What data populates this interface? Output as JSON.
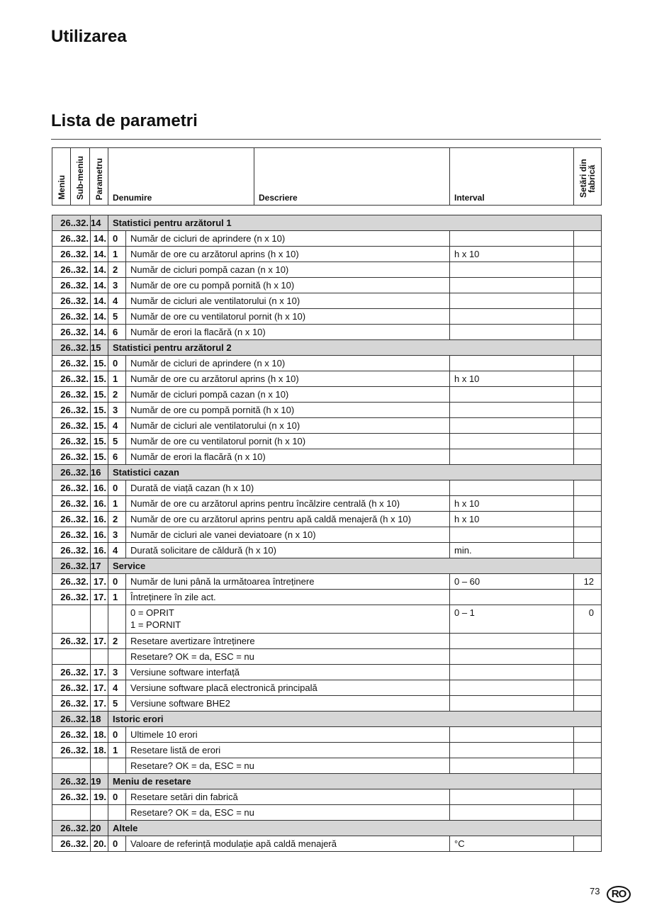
{
  "page_title": "Utilizarea",
  "section_title": "Lista de parametri",
  "headers": {
    "menu": "Meniu",
    "submenu": "Sub-meniu",
    "param": "Parametru",
    "name": "Denumire",
    "desc": "Descriere",
    "interval": "Interval",
    "factory": "Setări din fabrică"
  },
  "rows": [
    {
      "type": "sec",
      "menu": "26..32.",
      "sub": "14",
      "name": "Statistici pentru arzătorul 1"
    },
    {
      "menu": "26..32.",
      "sub": "14.",
      "param": "0",
      "name": "Număr de cicluri de aprindere (n x 10)",
      "interval": "",
      "factory": ""
    },
    {
      "menu": "26..32.",
      "sub": "14.",
      "param": "1",
      "name": "Număr de ore cu arzătorul aprins (h x 10)",
      "interval": "h x 10",
      "factory": ""
    },
    {
      "menu": "26..32.",
      "sub": "14.",
      "param": "2",
      "name": "Număr de cicluri pompă cazan (n x 10)",
      "interval": "",
      "factory": ""
    },
    {
      "menu": "26..32.",
      "sub": "14.",
      "param": "3",
      "name": "Număr de ore cu pompă pornită (h x 10)",
      "interval": "",
      "factory": ""
    },
    {
      "menu": "26..32.",
      "sub": "14.",
      "param": "4",
      "name": "Număr de cicluri ale ventilatorului (n x 10)",
      "interval": "",
      "factory": ""
    },
    {
      "menu": "26..32.",
      "sub": "14.",
      "param": "5",
      "name": "Număr de ore cu ventilatorul pornit (h x 10)",
      "interval": "",
      "factory": ""
    },
    {
      "menu": "26..32.",
      "sub": "14.",
      "param": "6",
      "name": "Număr de erori la flacără (n x 10)",
      "interval": "",
      "factory": ""
    },
    {
      "type": "sec",
      "menu": "26..32.",
      "sub": "15",
      "name": "Statistici pentru arzătorul 2"
    },
    {
      "menu": "26..32.",
      "sub": "15.",
      "param": "0",
      "name": "Număr de cicluri de aprindere (n x 10)",
      "interval": "",
      "factory": ""
    },
    {
      "menu": "26..32.",
      "sub": "15.",
      "param": "1",
      "name": "Număr de ore cu arzătorul aprins (h x 10)",
      "interval": "h x 10",
      "factory": ""
    },
    {
      "menu": "26..32.",
      "sub": "15.",
      "param": "2",
      "name": "Număr de cicluri pompă cazan (n x 10)",
      "interval": "",
      "factory": ""
    },
    {
      "menu": "26..32.",
      "sub": "15.",
      "param": "3",
      "name": "Număr de ore cu pompă pornită (h x 10)",
      "interval": "",
      "factory": ""
    },
    {
      "menu": "26..32.",
      "sub": "15.",
      "param": "4",
      "name": "Număr de cicluri ale ventilatorului (n x 10)",
      "interval": "",
      "factory": ""
    },
    {
      "menu": "26..32.",
      "sub": "15.",
      "param": "5",
      "name": "Număr de ore cu ventilatorul pornit (h x 10)",
      "interval": "",
      "factory": ""
    },
    {
      "menu": "26..32.",
      "sub": "15.",
      "param": "6",
      "name": "Număr de erori la flacără (n x 10)",
      "interval": "",
      "factory": ""
    },
    {
      "type": "sec",
      "menu": "26..32.",
      "sub": "16",
      "name": "Statistici cazan"
    },
    {
      "menu": "26..32.",
      "sub": "16.",
      "param": "0",
      "name": "Durată de viață cazan (h x 10)",
      "interval": "",
      "factory": ""
    },
    {
      "menu": "26..32.",
      "sub": "16.",
      "param": "1",
      "name": "Număr de ore cu arzătorul aprins pentru încălzire centrală (h x 10)",
      "interval": "h x 10",
      "factory": ""
    },
    {
      "menu": "26..32.",
      "sub": "16.",
      "param": "2",
      "name": "Număr de ore cu arzătorul aprins pentru apă caldă menajeră (h x 10)",
      "interval": "h x 10",
      "factory": ""
    },
    {
      "menu": "26..32.",
      "sub": "16.",
      "param": "3",
      "name": "Număr de cicluri ale vanei deviatoare (n x 10)",
      "interval": "",
      "factory": ""
    },
    {
      "menu": "26..32.",
      "sub": "16.",
      "param": "4",
      "name": "Durată solicitare de căldură (h x 10)",
      "interval": "min.",
      "factory": ""
    },
    {
      "type": "sec",
      "menu": "26..32.",
      "sub": "17",
      "name": "Service"
    },
    {
      "menu": "26..32.",
      "sub": "17.",
      "param": "0",
      "name": "Număr de luni până la următoarea întreținere",
      "interval": "0 – 60",
      "factory": "12"
    },
    {
      "menu": "26..32.",
      "sub": "17.",
      "param": "1",
      "name": "Întreținere în zile act.",
      "interval": "",
      "factory": ""
    },
    {
      "type": "cont",
      "tall": true,
      "name": "0 = OPRIT\n1 = PORNIT",
      "interval": "0 – 1",
      "factory": "0"
    },
    {
      "menu": "26..32.",
      "sub": "17.",
      "param": "2",
      "name": "Resetare avertizare întreținere",
      "interval": "",
      "factory": ""
    },
    {
      "type": "cont",
      "name": "Resetare? OK = da, ESC = nu",
      "interval": "",
      "factory": ""
    },
    {
      "menu": "26..32.",
      "sub": "17.",
      "param": "3",
      "name": "Versiune software interfață",
      "interval": "",
      "factory": ""
    },
    {
      "menu": "26..32.",
      "sub": "17.",
      "param": "4",
      "name": "Versiune software placă electronică principală",
      "interval": "",
      "factory": ""
    },
    {
      "menu": "26..32.",
      "sub": "17.",
      "param": "5",
      "name": "Versiune software BHE2",
      "interval": "",
      "factory": ""
    },
    {
      "type": "sec",
      "menu": "26..32.",
      "sub": "18",
      "name": "Istoric erori"
    },
    {
      "menu": "26..32.",
      "sub": "18.",
      "param": "0",
      "name": "Ultimele 10 erori",
      "interval": "",
      "factory": ""
    },
    {
      "menu": "26..32.",
      "sub": "18.",
      "param": "1",
      "name": "Resetare listă de erori",
      "interval": "",
      "factory": ""
    },
    {
      "type": "cont",
      "name": "Resetare? OK = da, ESC = nu",
      "interval": "",
      "factory": ""
    },
    {
      "type": "sec",
      "menu": "26..32.",
      "sub": "19",
      "name": "Meniu de resetare"
    },
    {
      "menu": "26..32.",
      "sub": "19.",
      "param": "0",
      "name": "Resetare setări din fabrică",
      "interval": "",
      "factory": ""
    },
    {
      "type": "cont",
      "name": "Resetare? OK = da, ESC = nu",
      "interval": "",
      "factory": ""
    },
    {
      "type": "sec",
      "menu": "26..32.",
      "sub": "20",
      "name": "Altele"
    },
    {
      "menu": "26..32.",
      "sub": "20.",
      "param": "0",
      "name": "Valoare de referință modulație apă caldă menajeră",
      "interval": "°C",
      "factory": ""
    }
  ],
  "footer": {
    "page_number": "73",
    "language_badge": "RO"
  }
}
